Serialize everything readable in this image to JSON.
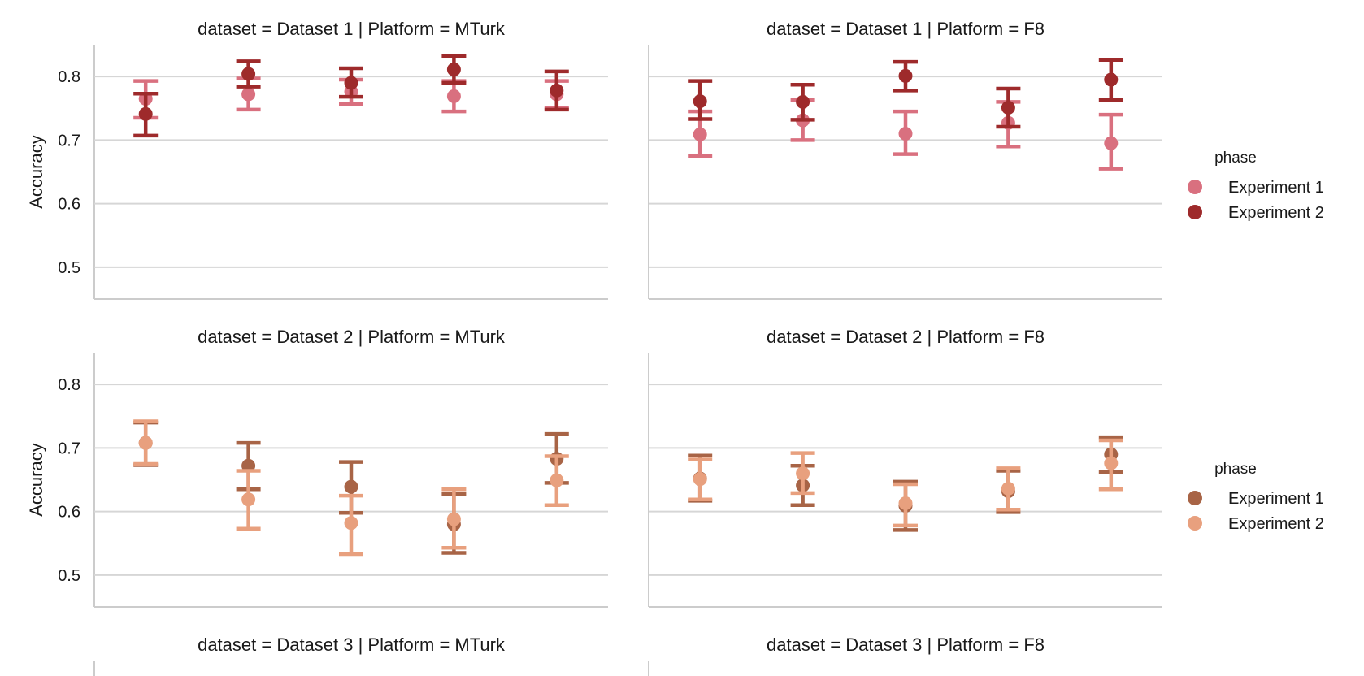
{
  "figure": {
    "ylabel": "Accuracy",
    "legend_title": "phase",
    "legend_position": "right"
  },
  "chart_data": [
    {
      "type": "scatter",
      "title": "dataset = Dataset 1 | Platform = MTurk",
      "ylabel": "Accuracy",
      "ylim": [
        0.45,
        0.85
      ],
      "yticks": [
        "0.5",
        "0.6",
        "0.7",
        "0.8"
      ],
      "grid": "horizontal",
      "x_categories": 5,
      "series": [
        {
          "name": "Experiment 1",
          "color": "#d9707f",
          "mean": [
            0.765,
            0.772,
            0.776,
            0.769,
            0.772
          ],
          "low": [
            0.735,
            0.748,
            0.757,
            0.745,
            0.75
          ],
          "high": [
            0.793,
            0.797,
            0.795,
            0.793,
            0.793
          ]
        },
        {
          "name": "Experiment 2",
          "color": "#9e2a2b",
          "mean": [
            0.741,
            0.804,
            0.79,
            0.811,
            0.778
          ],
          "low": [
            0.707,
            0.784,
            0.768,
            0.79,
            0.748
          ],
          "high": [
            0.773,
            0.824,
            0.813,
            0.832,
            0.808
          ]
        }
      ]
    },
    {
      "type": "scatter",
      "title": "dataset = Dataset 1 | Platform = F8",
      "ylabel": "",
      "ylim": [
        0.45,
        0.85
      ],
      "yticks": [],
      "grid": "horizontal",
      "x_categories": 5,
      "series": [
        {
          "name": "Experiment 1",
          "color": "#d9707f",
          "mean": [
            0.709,
            0.731,
            0.71,
            0.727,
            0.695
          ],
          "low": [
            0.675,
            0.7,
            0.678,
            0.69,
            0.655
          ],
          "high": [
            0.745,
            0.763,
            0.745,
            0.76,
            0.74
          ]
        },
        {
          "name": "Experiment 2",
          "color": "#9e2a2b",
          "mean": [
            0.761,
            0.76,
            0.801,
            0.751,
            0.795
          ],
          "low": [
            0.733,
            0.732,
            0.778,
            0.721,
            0.763
          ],
          "high": [
            0.793,
            0.787,
            0.823,
            0.781,
            0.826
          ]
        }
      ]
    },
    {
      "type": "scatter",
      "title": "dataset = Dataset 2 | Platform = MTurk",
      "ylabel": "Accuracy",
      "ylim": [
        0.45,
        0.85
      ],
      "yticks": [
        "0.5",
        "0.6",
        "0.7",
        "0.8"
      ],
      "grid": "horizontal",
      "x_categories": 5,
      "series": [
        {
          "name": "Experiment 1",
          "color": "#a86446",
          "mean": [
            0.708,
            0.672,
            0.639,
            0.58,
            0.683
          ],
          "low": [
            0.673,
            0.635,
            0.598,
            0.535,
            0.645
          ],
          "high": [
            0.74,
            0.708,
            0.678,
            0.628,
            0.722
          ]
        },
        {
          "name": "Experiment 2",
          "color": "#e8a07e",
          "mean": [
            0.708,
            0.619,
            0.582,
            0.588,
            0.649
          ],
          "low": [
            0.675,
            0.573,
            0.533,
            0.543,
            0.61
          ],
          "high": [
            0.742,
            0.664,
            0.625,
            0.635,
            0.687
          ]
        }
      ]
    },
    {
      "type": "scatter",
      "title": "dataset = Dataset 2 | Platform = F8",
      "ylabel": "",
      "ylim": [
        0.45,
        0.85
      ],
      "yticks": [],
      "grid": "horizontal",
      "x_categories": 5,
      "series": [
        {
          "name": "Experiment 1",
          "color": "#a86446",
          "mean": [
            0.652,
            0.641,
            0.609,
            0.632,
            0.69
          ],
          "low": [
            0.617,
            0.61,
            0.571,
            0.599,
            0.662
          ],
          "high": [
            0.688,
            0.672,
            0.647,
            0.664,
            0.717
          ]
        },
        {
          "name": "Experiment 2",
          "color": "#e8a07e",
          "mean": [
            0.651,
            0.66,
            0.613,
            0.636,
            0.676
          ],
          "low": [
            0.619,
            0.629,
            0.578,
            0.603,
            0.635
          ],
          "high": [
            0.682,
            0.692,
            0.643,
            0.668,
            0.712
          ]
        }
      ]
    },
    {
      "type": "scatter",
      "title": "dataset = Dataset 3 | Platform = MTurk",
      "series": []
    },
    {
      "type": "scatter",
      "title": "dataset = Dataset 3 | Platform = F8",
      "series": []
    }
  ],
  "legends": [
    {
      "title": "phase",
      "entries": [
        {
          "label": "Experiment 1",
          "color": "#d9707f"
        },
        {
          "label": "Experiment 2",
          "color": "#9e2a2b"
        }
      ]
    },
    {
      "title": "phase",
      "entries": [
        {
          "label": "Experiment 1",
          "color": "#a86446"
        },
        {
          "label": "Experiment 2",
          "color": "#e8a07e"
        }
      ]
    }
  ]
}
